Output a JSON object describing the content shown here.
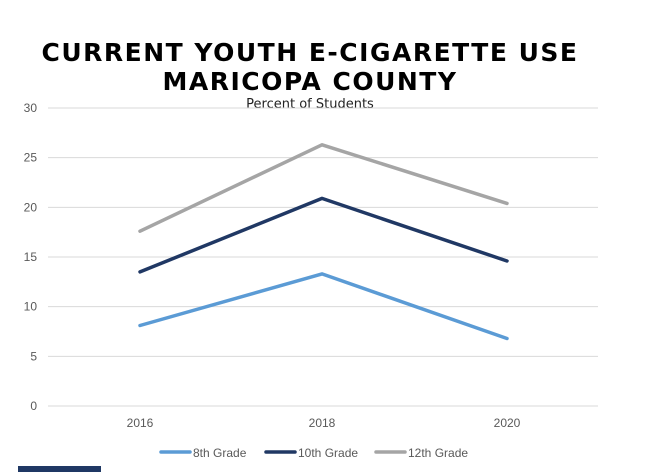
{
  "chart_data": {
    "type": "line",
    "title_line1": "CURRENT YOUTH E-CIGARETTE USE",
    "title_line2": "MARICOPA COUNTY",
    "subtitle": "Percent of Students",
    "x": [
      "2016",
      "2018",
      "2020"
    ],
    "ylim": [
      0,
      30
    ],
    "yticks": [
      "0",
      "5",
      "10",
      "15",
      "20",
      "25",
      "30"
    ],
    "grid": true,
    "legend_position": "bottom",
    "series": [
      {
        "name": "8th Grade",
        "values": [
          8.1,
          13.3,
          6.8
        ],
        "color": "#5b9bd5"
      },
      {
        "name": "10th Grade",
        "values": [
          13.5,
          20.9,
          14.6
        ],
        "color": "#203864"
      },
      {
        "name": "12th Grade",
        "values": [
          17.6,
          26.3,
          20.4
        ],
        "color": "#a5a5a5"
      }
    ]
  },
  "colors": {
    "grid": "#d9d9d9",
    "bottom_bar": "#1f3864"
  }
}
